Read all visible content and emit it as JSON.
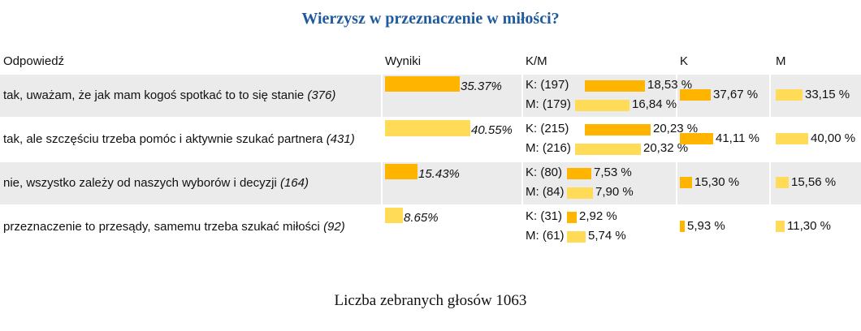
{
  "title": "Wierzysz w przeznaczenie w miłości?",
  "headers": {
    "answer": "Odpowiedź",
    "results": "Wyniki",
    "km": "K/M",
    "k": "K",
    "m": "M"
  },
  "colors": {
    "dark": "#ffb400",
    "light": "#ffdb58",
    "title": "#1f5a9e",
    "row_bg": "#ebebeb"
  },
  "footer": "Liczba zebranych głosów 1063",
  "chart_data": {
    "type": "bar",
    "title": "Wierzysz w przeznaczenie w miłości?",
    "categories": [
      "tak, uważam, że jak mam kogoś spotkać to to się stanie",
      "tak, ale szczęściu trzeba pomóc i aktywnie szukać partnera",
      "nie, wszystko zależy od naszych wyborów i decyzji",
      "przeznaczenie to przesądy, samemu trzeba szukać miłości"
    ],
    "rows": [
      {
        "label": "tak, uważam, że jak mam kogoś spotkać to to się stanie",
        "count": "(376)",
        "result": 35.37,
        "result_text": "35.37%",
        "k_count": "K: (197)",
        "k_pct": 18.53,
        "k_pct_text": "18,53 %",
        "m_count": "M: (179)",
        "m_pct": 16.84,
        "m_pct_text": "16,84 %",
        "k_col": 37.67,
        "k_col_text": "37,67 %",
        "m_col": 33.15,
        "m_col_text": "33,15 %"
      },
      {
        "label": "tak, ale szczęściu trzeba pomóc i aktywnie szukać partnera",
        "count": "(431)",
        "result": 40.55,
        "result_text": "40.55%",
        "k_count": "K: (215)",
        "k_pct": 20.23,
        "k_pct_text": "20,23 %",
        "m_count": "M: (216)",
        "m_pct": 20.32,
        "m_pct_text": "20,32 %",
        "k_col": 41.11,
        "k_col_text": "41,11 %",
        "m_col": 40.0,
        "m_col_text": "40,00 %"
      },
      {
        "label": "nie, wszystko zależy od naszych wyborów i decyzji",
        "count": "(164)",
        "result": 15.43,
        "result_text": "15.43%",
        "k_count": "K: (80)",
        "k_pct": 7.53,
        "k_pct_text": "7,53 %",
        "m_count": "M: (84)",
        "m_pct": 7.9,
        "m_pct_text": "7,90 %",
        "k_col": 15.3,
        "k_col_text": "15,30 %",
        "m_col": 15.56,
        "m_col_text": "15,56 %"
      },
      {
        "label": "przeznaczenie to przesądy, samemu trzeba szukać miłości",
        "count": "(92)",
        "result": 8.65,
        "result_text": "8.65%",
        "k_count": "K: (31)",
        "k_pct": 2.92,
        "k_pct_text": "2,92 %",
        "m_count": "M: (61)",
        "m_pct": 5.74,
        "m_pct_text": "5,74 %",
        "k_col": 5.93,
        "k_col_text": "5,93 %",
        "m_col": 11.3,
        "m_col_text": "11,30 %"
      }
    ],
    "total_votes": 1063
  }
}
